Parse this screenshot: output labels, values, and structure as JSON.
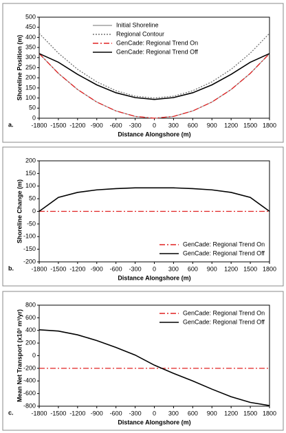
{
  "chart_data": [
    {
      "type": "line",
      "panel_label": "a.",
      "xlabel": "Distance Alongshore (m)",
      "ylabel": "Shoreline Position (m)",
      "x": [
        -1800,
        -1500,
        -1200,
        -900,
        -600,
        -300,
        0,
        300,
        600,
        900,
        1200,
        1500,
        1800
      ],
      "xlim": [
        -1800,
        1800
      ],
      "xticks": [
        -1800,
        -1500,
        -1200,
        -900,
        -600,
        -300,
        0,
        300,
        600,
        900,
        1200,
        1500,
        1800
      ],
      "ylim": [
        0,
        500
      ],
      "yticks": [
        0,
        50,
        100,
        150,
        200,
        250,
        300,
        350,
        400,
        450,
        500
      ],
      "legend": "upper center",
      "series": [
        {
          "name": "Initial Shoreline",
          "color": "#a0a0a0",
          "linestyle": "solid",
          "values": [
            320,
            222,
            142,
            80,
            36,
            9,
            0,
            9,
            36,
            80,
            142,
            222,
            320
          ]
        },
        {
          "name": "Regional Contour",
          "color": "#707070",
          "linestyle": "dotted",
          "values": [
            420,
            322,
            242,
            180,
            136,
            109,
            100,
            109,
            136,
            180,
            242,
            322,
            420
          ]
        },
        {
          "name": "GenCade: Regional Trend On",
          "color": "#e02020",
          "linestyle": "dashdot",
          "values": [
            320,
            222,
            142,
            80,
            36,
            9,
            0,
            9,
            36,
            80,
            142,
            222,
            320
          ]
        },
        {
          "name": "GenCade: Regional Trend Off",
          "color": "#000000",
          "linestyle": "solid",
          "values": [
            320,
            277,
            217,
            165,
            126,
            102,
            93,
            102,
            126,
            165,
            217,
            277,
            320
          ]
        }
      ]
    },
    {
      "type": "line",
      "panel_label": "b.",
      "xlabel": "Distance Alongshore (m)",
      "ylabel": "Shoreline Change (m)",
      "x": [
        -1800,
        -1500,
        -1200,
        -900,
        -600,
        -300,
        0,
        300,
        600,
        900,
        1200,
        1500,
        1800
      ],
      "xlim": [
        -1800,
        1800
      ],
      "xticks": [
        -1800,
        -1500,
        -1200,
        -900,
        -600,
        -300,
        0,
        300,
        600,
        900,
        1200,
        1500,
        1800
      ],
      "ylim": [
        -200,
        200
      ],
      "yticks": [
        -200,
        -150,
        -100,
        -50,
        0,
        50,
        100,
        150,
        200
      ],
      "legend": "lower right",
      "series": [
        {
          "name": "GenCade: Regional Trend On",
          "color": "#e02020",
          "linestyle": "dashdot",
          "values": [
            0,
            0,
            0,
            0,
            0,
            0,
            0,
            0,
            0,
            0,
            0,
            0,
            0
          ]
        },
        {
          "name": "GenCade: Regional Trend Off",
          "color": "#000000",
          "linestyle": "solid",
          "values": [
            0,
            55,
            75,
            85,
            90,
            93,
            93,
            93,
            90,
            85,
            75,
            55,
            0
          ]
        }
      ]
    },
    {
      "type": "line",
      "panel_label": "c.",
      "xlabel": "Distance Alongshore (m)",
      "ylabel": "Mean Net Transport (x10³ m³/yr)",
      "x": [
        -1800,
        -1500,
        -1200,
        -900,
        -600,
        -300,
        0,
        300,
        600,
        900,
        1200,
        1500,
        1800
      ],
      "xlim": [
        -1800,
        1800
      ],
      "xticks": [
        -1800,
        -1500,
        -1200,
        -900,
        -600,
        -300,
        0,
        300,
        600,
        900,
        1200,
        1500,
        1800
      ],
      "ylim": [
        -800,
        800
      ],
      "yticks": [
        -800,
        -600,
        -400,
        -200,
        0,
        200,
        400,
        600,
        800
      ],
      "legend": "upper right",
      "series": [
        {
          "name": "GenCade: Regional Trend On",
          "color": "#e02020",
          "linestyle": "dashdot",
          "values": [
            -200,
            -200,
            -200,
            -200,
            -200,
            -200,
            -200,
            -200,
            -200,
            -200,
            -200,
            -200,
            -200
          ]
        },
        {
          "name": "GenCade: Regional Trend Off",
          "color": "#000000",
          "linestyle": "solid",
          "values": [
            410,
            390,
            330,
            240,
            130,
            10,
            -150,
            -280,
            -400,
            -530,
            -650,
            -740,
            -790
          ]
        }
      ]
    }
  ]
}
